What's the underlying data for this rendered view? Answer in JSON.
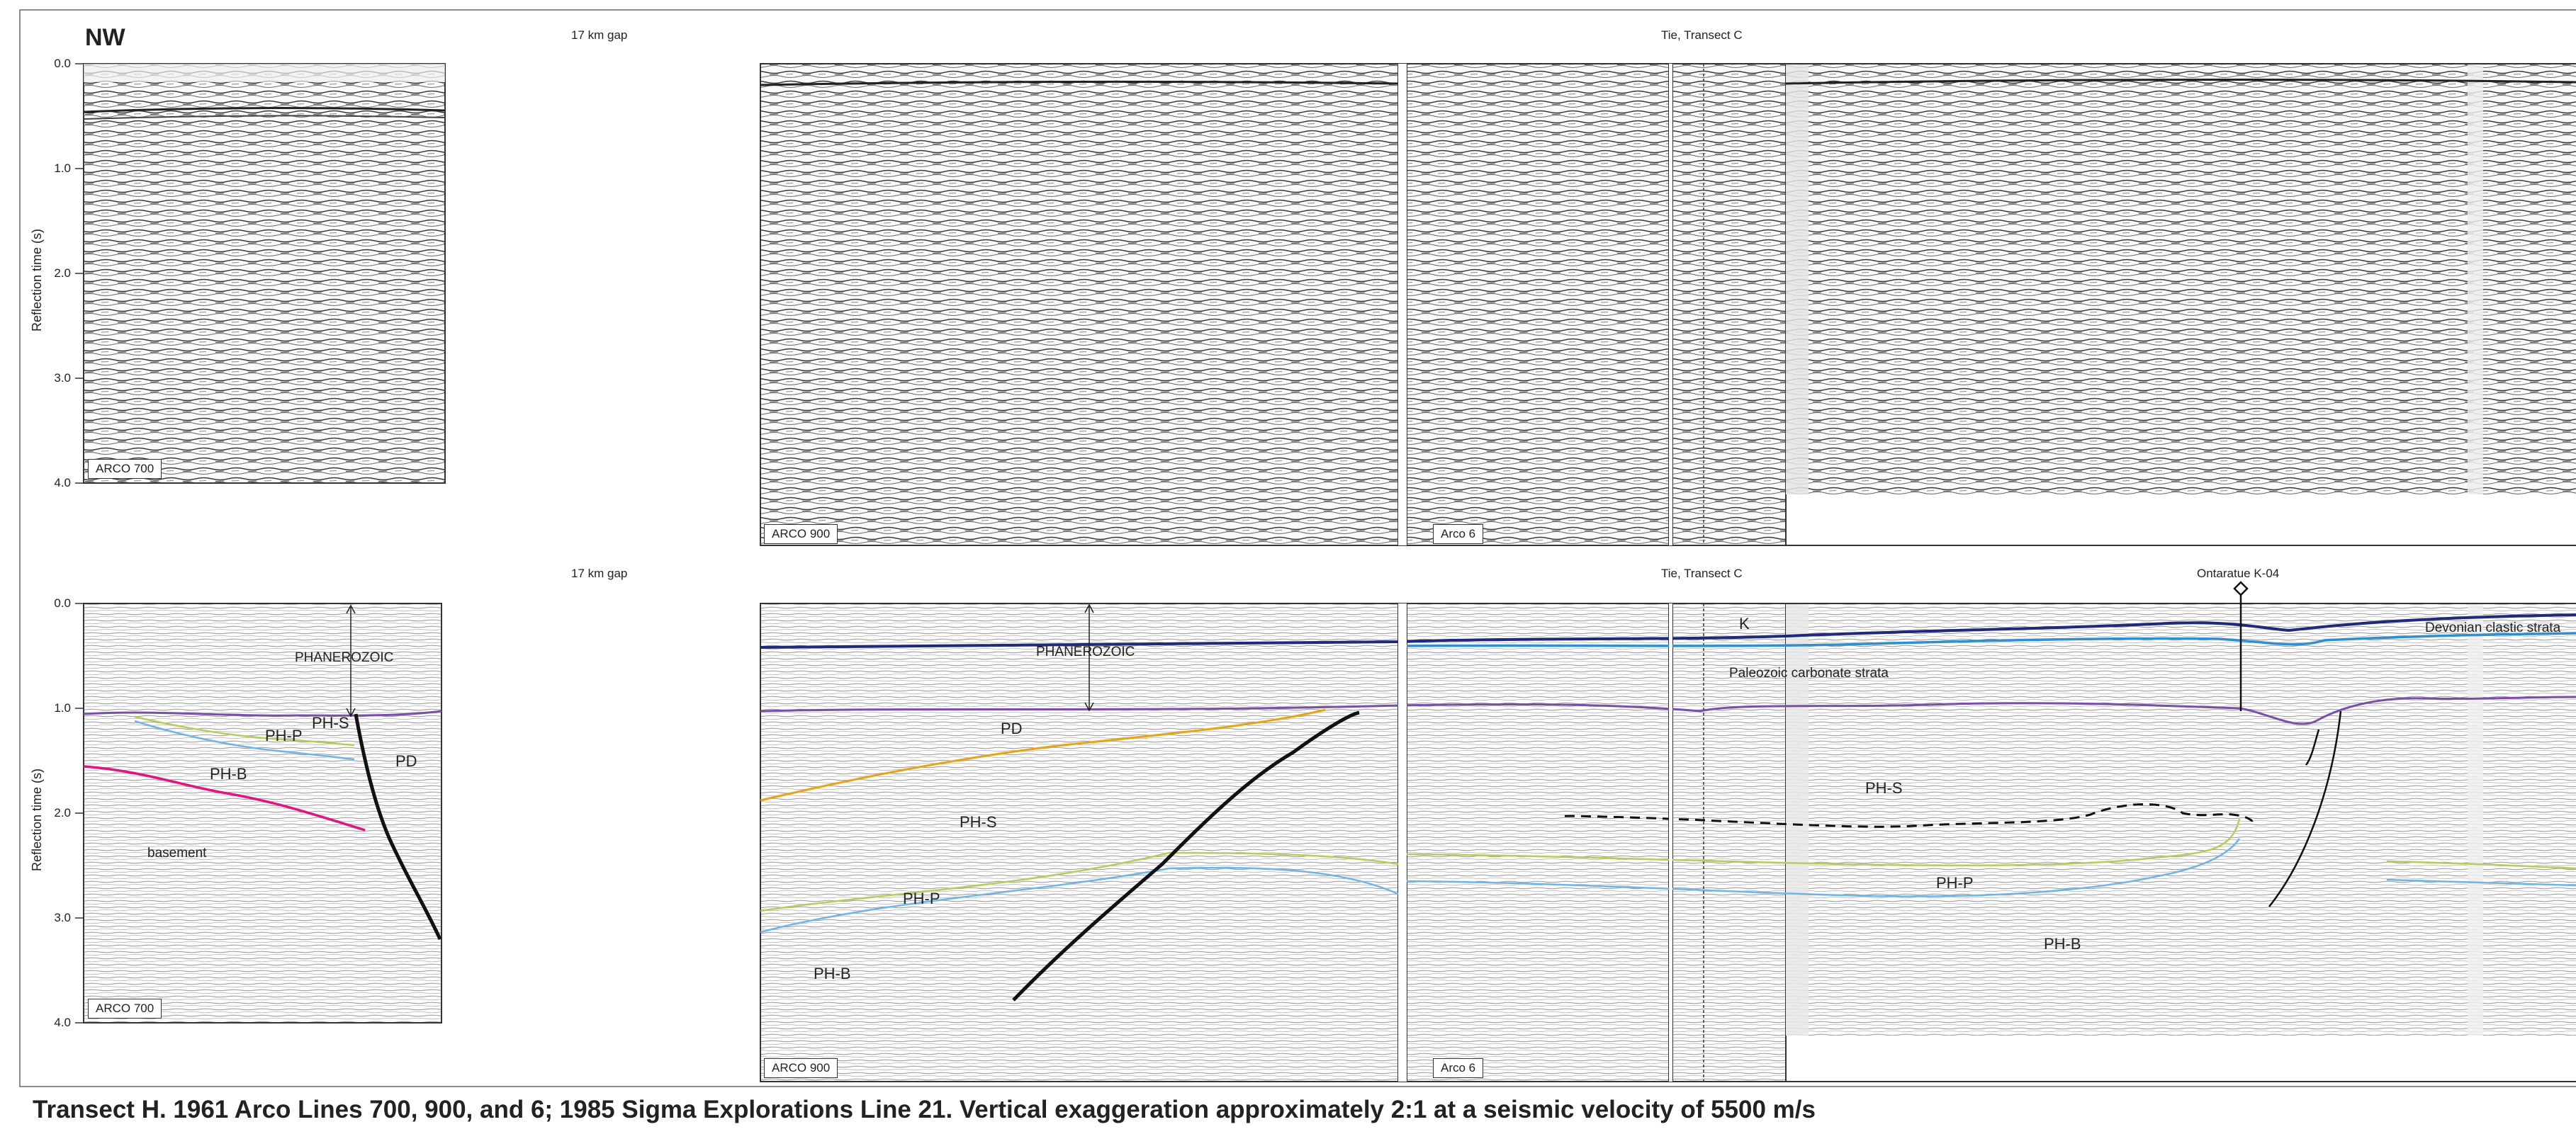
{
  "header": {
    "direction": "NW"
  },
  "gap_label": "17 km gap",
  "tie_label": "Tie, Transect C",
  "well_label": "Ontaratue K-04",
  "y_axis": {
    "label": "Reflection time (s)",
    "ticks": [
      "0.0",
      "1.0",
      "2.0",
      "3.0",
      "4.0"
    ]
  },
  "line_labels": {
    "arco700": "ARCO 700",
    "arco900": "ARCO 900",
    "arco6": "Arco 6"
  },
  "interpretation": {
    "phanerozoic": "PHANEROZOIC",
    "ph_s": "PH-S",
    "ph_p": "PH-P",
    "ph_b": "PH-B",
    "p_d": "PD",
    "basement": "basement",
    "k": "K",
    "paleozoic_carbonate": "Paleozoic carbonate strata",
    "devonian_clastic": "Devonian clastic strata"
  },
  "horizon_colors": {
    "top_k": "#1f2a7a",
    "devonian": "#2f8fd0",
    "top_proterozoic": "#7a4fa8",
    "pd_top": "#e8a317",
    "ph_p_top": "#b7cc5a",
    "ph_b_top": "#6fb6e6",
    "basement_top": "#e0157f",
    "fault": "#111111"
  },
  "caption": "Transect H. 1961 Arco Lines 700, 900, and 6; 1985 Sigma Explorations Line 21. Vertical exaggeration approximately 2:1 at a seismic velocity of 5500 m/s"
}
